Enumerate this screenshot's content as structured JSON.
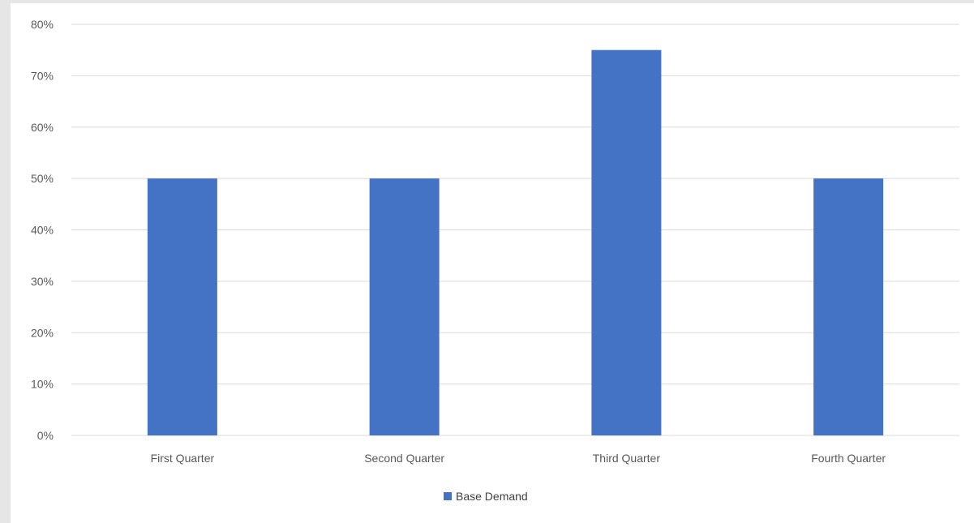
{
  "chart_data": {
    "type": "bar",
    "categories": [
      "First Quarter",
      "Second Quarter",
      "Third Quarter",
      "Fourth Quarter"
    ],
    "series": [
      {
        "name": "Base Demand",
        "values": [
          0.5,
          0.5,
          0.75,
          0.5
        ],
        "color": "#4472C4"
      }
    ],
    "y_ticks": [
      "0%",
      "10%",
      "20%",
      "30%",
      "40%",
      "50%",
      "60%",
      "70%",
      "80%"
    ],
    "ylim": [
      0,
      0.8
    ],
    "y_format": "percent",
    "grid": true,
    "legend_position": "bottom",
    "title": "",
    "xlabel": "",
    "ylabel": ""
  },
  "colors": {
    "background": "#e6e6e6",
    "plot_background": "#ffffff",
    "gridline": "#d9d9d9",
    "axis_text": "#595959"
  }
}
